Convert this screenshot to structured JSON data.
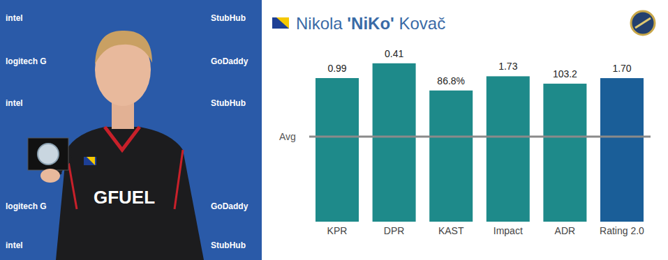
{
  "chart_data": {
    "type": "bar",
    "title": "Nikola 'NiKo' Kovač",
    "title_bold": "'NiKo'",
    "reference_label": "Avg",
    "categories": [
      "KPR",
      "DPR",
      "KAST",
      "Impact",
      "ADR",
      "Rating 2.0"
    ],
    "values": [
      0.99,
      0.41,
      86.8,
      1.73,
      103.2,
      1.7
    ],
    "value_labels": [
      "0.99",
      "0.41",
      "86.8%",
      "1.73",
      "103.2",
      "1.70"
    ],
    "ylims": [
      [
        0,
        1.24
      ],
      [
        1.0,
        0.33
      ],
      [
        0,
        119
      ],
      [
        0,
        2.14
      ],
      [
        0,
        134.5
      ],
      [
        0,
        2.13
      ]
    ],
    "colors": [
      "#1e8a8a",
      "#1e8a8a",
      "#1e8a8a",
      "#1e8a8a",
      "#1e8a8a",
      "#1a5e98"
    ],
    "data_labels": true,
    "tick_labels": "x",
    "grid": false
  },
  "photo": {
    "backdrop_logos": [
      "intel",
      "StubHub",
      "logitech G",
      "GoDaddy"
    ],
    "jersey_text": "GFUEL"
  }
}
